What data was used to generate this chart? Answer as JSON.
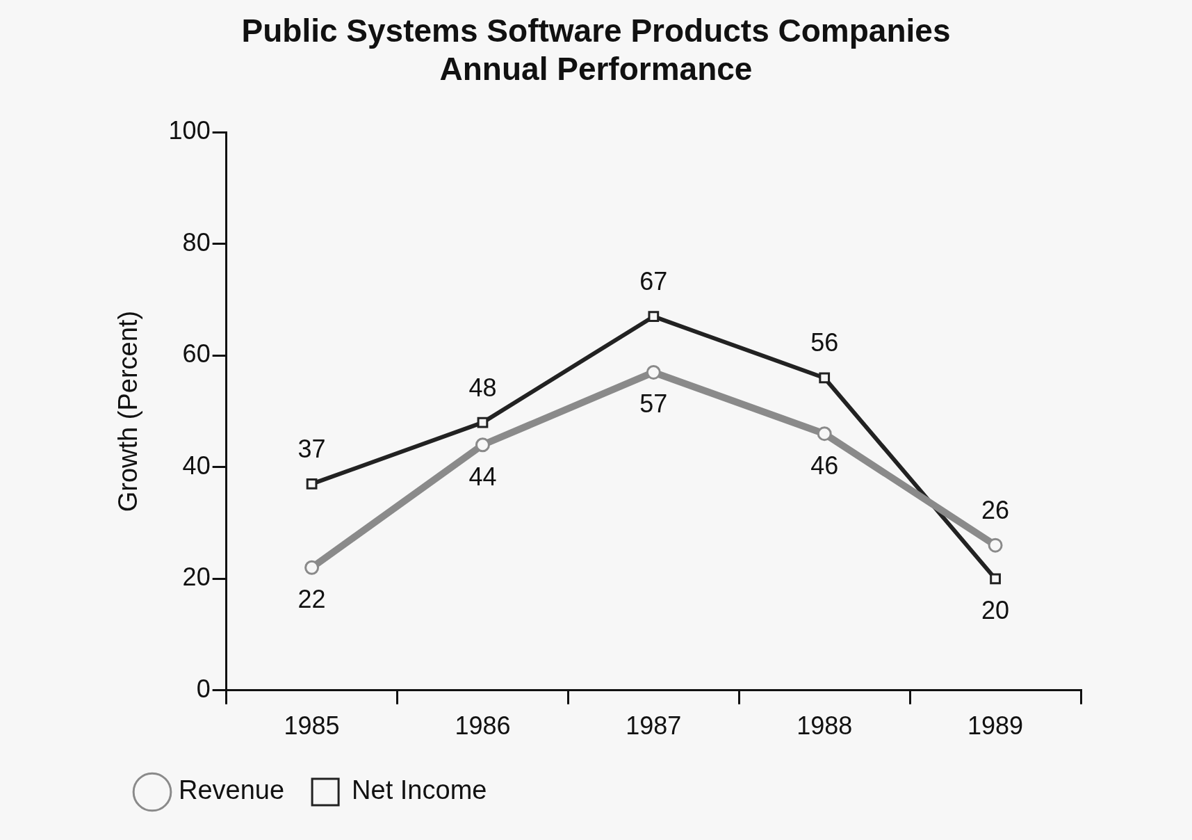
{
  "chart_data": {
    "type": "line",
    "title": [
      "Public Systems Software Products Companies",
      "Annual Performance"
    ],
    "ylabel": "Growth (Percent)",
    "categories": [
      "1985",
      "1986",
      "1987",
      "1988",
      "1989"
    ],
    "series": [
      {
        "name": "Net Income",
        "color": "#222222",
        "marker": "square",
        "values": [
          37,
          48,
          67,
          56,
          20
        ]
      },
      {
        "name": "Revenue",
        "color": "#8a8a8a",
        "marker": "circle",
        "values": [
          22,
          44,
          57,
          46,
          26
        ]
      }
    ],
    "ylim": [
      0,
      100
    ],
    "yticks": [
      0,
      20,
      40,
      60,
      80,
      100
    ],
    "grid": false,
    "legend": "bottom left",
    "data_labels": true
  }
}
